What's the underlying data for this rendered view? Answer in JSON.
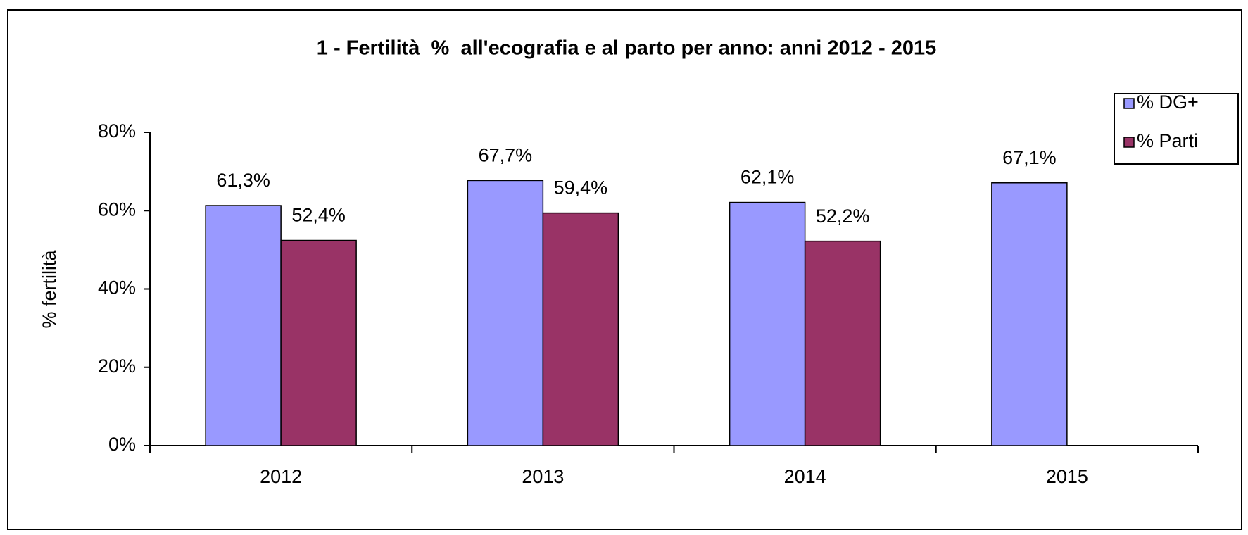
{
  "chart_data": {
    "type": "bar",
    "title": "1 - Fertilità  %  all'ecografia e al parto per anno: anni 2012 - 2015",
    "ylabel": "% fertilità",
    "categories": [
      "2012",
      "2013",
      "2014",
      "2015"
    ],
    "series": [
      {
        "name": "% DG+",
        "color": "#9999ff",
        "values": [
          61.3,
          67.7,
          62.1,
          67.1
        ],
        "value_labels": [
          "61,3%",
          "67,7%",
          "62,1%",
          "67,1%"
        ]
      },
      {
        "name": "% Parti",
        "color": "#993366",
        "values": [
          52.4,
          59.4,
          52.2,
          null
        ],
        "value_labels": [
          "52,4%",
          "59,4%",
          "52,2%",
          null
        ]
      }
    ],
    "ylim": [
      0,
      80
    ],
    "yticks": [
      {
        "value": 0,
        "label": "0%"
      },
      {
        "value": 20,
        "label": "20%"
      },
      {
        "value": 40,
        "label": "40%"
      },
      {
        "value": 60,
        "label": "60%"
      },
      {
        "value": 80,
        "label": "80%"
      }
    ],
    "grid": false,
    "legend": "top-right"
  }
}
